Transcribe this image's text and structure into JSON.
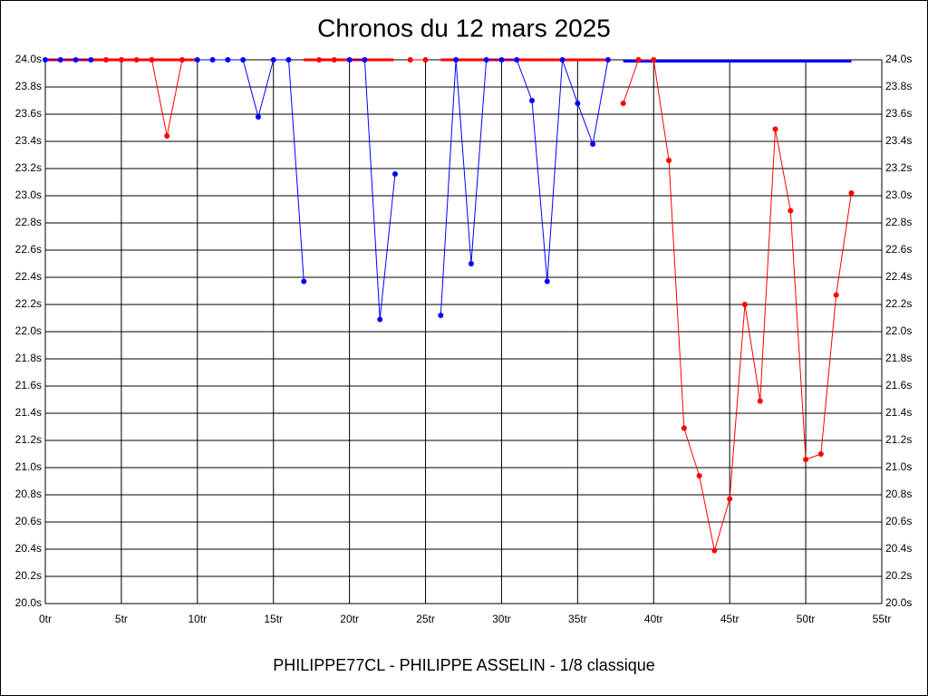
{
  "chart_data": {
    "type": "line",
    "title": "Chronos du 12 mars 2025",
    "xlabel": "PHILIPPE77CL - PHILIPPE ASSELIN - 1/8 classique",
    "x": [
      0,
      1,
      2,
      3,
      4,
      5,
      6,
      7,
      8,
      9,
      10,
      11,
      12,
      13,
      14,
      15,
      16,
      17,
      18,
      19,
      20,
      21,
      22,
      23,
      24,
      25,
      26,
      27,
      28,
      29,
      30,
      31,
      32,
      33,
      34,
      35,
      36,
      37,
      38,
      39,
      40,
      41,
      42,
      43,
      44,
      45,
      46,
      47,
      48,
      49,
      50,
      51,
      52,
      53
    ],
    "series": [
      {
        "color": "#0000ff",
        "values": [
          24.0,
          24.0,
          24.0,
          24.0,
          null,
          null,
          null,
          null,
          null,
          null,
          24.0,
          24.0,
          24.0,
          24.0,
          23.58,
          24.0,
          24.0,
          22.37,
          null,
          null,
          24.0,
          24.0,
          22.09,
          23.16,
          null,
          null,
          22.12,
          24.0,
          22.5,
          24.0,
          24.0,
          24.0,
          23.7,
          22.37,
          24.0,
          23.68,
          23.38,
          24.0,
          null,
          null,
          null,
          null,
          null,
          null,
          null,
          null,
          null,
          null,
          null,
          null,
          null,
          null,
          null,
          null
        ]
      },
      {
        "color": "#ff0000",
        "values": [
          null,
          null,
          null,
          null,
          24.0,
          24.0,
          24.0,
          24.0,
          23.44,
          24.0,
          null,
          null,
          null,
          null,
          null,
          null,
          null,
          null,
          24.0,
          24.0,
          null,
          null,
          null,
          null,
          24.0,
          24.0,
          null,
          null,
          null,
          null,
          null,
          null,
          null,
          null,
          null,
          null,
          null,
          null,
          23.68,
          24.0,
          24.0,
          23.26,
          21.29,
          20.94,
          20.39,
          20.77,
          22.2,
          21.49,
          23.49,
          22.89,
          21.06,
          21.1,
          22.27,
          23.02
        ]
      }
    ],
    "reference_lines": [
      {
        "color": "#ff0000",
        "x": [
          0,
          10.1
        ],
        "value": 24.0
      },
      {
        "color": "#ff0000",
        "x": [
          17,
          22.9
        ],
        "value": 24.0
      },
      {
        "color": "#ff0000",
        "x": [
          26,
          36.9
        ],
        "value": 24.0
      },
      {
        "color": "#0000ff",
        "x": [
          38,
          53
        ],
        "value": 23.99
      }
    ],
    "xlim": [
      0,
      55
    ],
    "xticks": [
      {
        "value": 0,
        "label": "0tr"
      },
      {
        "value": 5,
        "label": "5tr"
      },
      {
        "value": 10,
        "label": "10tr"
      },
      {
        "value": 15,
        "label": "15tr"
      },
      {
        "value": 20,
        "label": "20tr"
      },
      {
        "value": 25,
        "label": "25tr"
      },
      {
        "value": 30,
        "label": "30tr"
      },
      {
        "value": 35,
        "label": "35tr"
      },
      {
        "value": 40,
        "label": "40tr"
      },
      {
        "value": 45,
        "label": "45tr"
      },
      {
        "value": 50,
        "label": "50tr"
      },
      {
        "value": 55,
        "label": "55tr"
      }
    ],
    "ylim": [
      20.0,
      24.0
    ],
    "yticks": [
      {
        "value": 20.0,
        "label": "20.0s"
      },
      {
        "value": 20.2,
        "label": "20.2s"
      },
      {
        "value": 20.4,
        "label": "20.4s"
      },
      {
        "value": 20.6,
        "label": "20.6s"
      },
      {
        "value": 20.8,
        "label": "20.8s"
      },
      {
        "value": 21.0,
        "label": "21.0s"
      },
      {
        "value": 21.2,
        "label": "21.2s"
      },
      {
        "value": 21.4,
        "label": "21.4s"
      },
      {
        "value": 21.6,
        "label": "21.6s"
      },
      {
        "value": 21.8,
        "label": "21.8s"
      },
      {
        "value": 22.0,
        "label": "22.0s"
      },
      {
        "value": 22.2,
        "label": "22.2s"
      },
      {
        "value": 22.4,
        "label": "22.4s"
      },
      {
        "value": 22.6,
        "label": "22.6s"
      },
      {
        "value": 22.8,
        "label": "22.8s"
      },
      {
        "value": 23.0,
        "label": "23.0s"
      },
      {
        "value": 23.2,
        "label": "23.2s"
      },
      {
        "value": 23.4,
        "label": "23.4s"
      },
      {
        "value": 23.6,
        "label": "23.6s"
      },
      {
        "value": 23.8,
        "label": "23.8s"
      },
      {
        "value": 24.0,
        "label": "24.0s"
      }
    ],
    "grid": true
  }
}
